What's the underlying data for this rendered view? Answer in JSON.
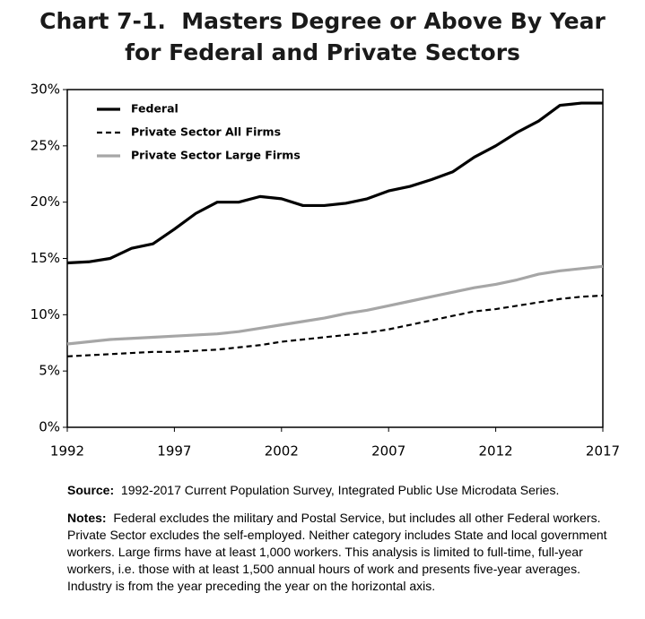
{
  "chart_data": {
    "type": "line",
    "title": [
      "Chart 7-1.  Masters Degree or Above By Year",
      "for Federal and Private Sectors"
    ],
    "x": [
      1992,
      1993,
      1994,
      1995,
      1996,
      1997,
      1998,
      1999,
      2000,
      2001,
      2002,
      2003,
      2004,
      2005,
      2006,
      2007,
      2008,
      2009,
      2010,
      2011,
      2012,
      2013,
      2014,
      2015,
      2016,
      2017
    ],
    "series": [
      {
        "name": "Federal",
        "color": "#000000",
        "line_style": "solid",
        "values": [
          14.6,
          14.7,
          15.0,
          15.9,
          16.3,
          17.6,
          19.0,
          20.0,
          20.0,
          20.5,
          20.3,
          19.7,
          19.7,
          19.9,
          20.3,
          21.0,
          21.4,
          22.0,
          22.7,
          24.0,
          25.0,
          26.2,
          27.2,
          28.6,
          28.8,
          28.8
        ]
      },
      {
        "name": "Private Sector All Firms",
        "color": "#000000",
        "line_style": "dashed",
        "values": [
          6.3,
          6.4,
          6.5,
          6.6,
          6.7,
          6.7,
          6.8,
          6.9,
          7.1,
          7.3,
          7.6,
          7.8,
          8.0,
          8.2,
          8.4,
          8.7,
          9.1,
          9.5,
          9.9,
          10.3,
          10.5,
          10.8,
          11.1,
          11.4,
          11.6,
          11.7
        ]
      },
      {
        "name": "Private Sector Large Firms",
        "color": "#a6a6a6",
        "line_style": "solid",
        "values": [
          7.4,
          7.6,
          7.8,
          7.9,
          8.0,
          8.1,
          8.2,
          8.3,
          8.5,
          8.8,
          9.1,
          9.4,
          9.7,
          10.1,
          10.4,
          10.8,
          11.2,
          11.6,
          12.0,
          12.4,
          12.7,
          13.1,
          13.6,
          13.9,
          14.1,
          14.3
        ]
      }
    ],
    "xlim": [
      1992,
      2017
    ],
    "xticks": [
      1992,
      1997,
      2002,
      2007,
      2012,
      2017
    ],
    "ylim": [
      0,
      30
    ],
    "yticks": [
      {
        "value": 0,
        "label": "0%"
      },
      {
        "value": 5,
        "label": "5%"
      },
      {
        "value": 10,
        "label": "10%"
      },
      {
        "value": 15,
        "label": "15%"
      },
      {
        "value": 20,
        "label": "20%"
      },
      {
        "value": 25,
        "label": "25%"
      },
      {
        "value": 30,
        "label": "30%"
      }
    ],
    "legend": "upper left",
    "source_label": "Source:",
    "source": "1992-2017 Current Population Survey, Integrated Public Use Microdata Series.",
    "notes_label": "Notes:",
    "notes": "Federal excludes the military and Postal Service, but includes all other Federal workers.  Private Sector excludes the self-employed.  Neither category includes State and local government workers. Large firms have at least 1,000 workers. This analysis is limited to full-time, full-year workers, i.e. those with at least 1,500 annual hours of work and presents five-year  averages.  Industry is from the year preceding the year on the horizontal axis."
  }
}
